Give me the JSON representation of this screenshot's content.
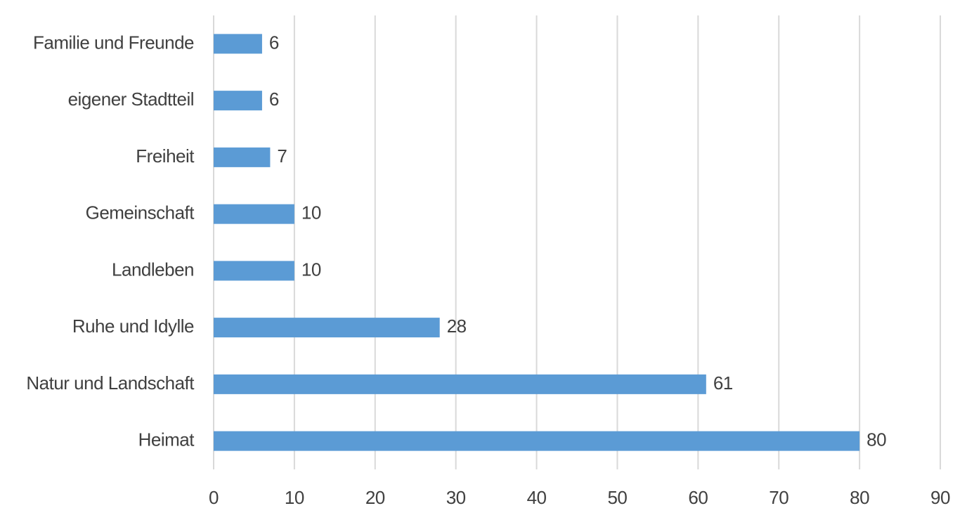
{
  "chart_data": {
    "type": "bar",
    "orientation": "horizontal",
    "categories": [
      "Familie und Freunde",
      "eigener Stadtteil",
      "Freiheit",
      "Gemeinschaft",
      "Landleben",
      "Ruhe und Idylle",
      "Natur und Landschaft",
      "Heimat"
    ],
    "values": [
      6,
      6,
      7,
      10,
      10,
      28,
      61,
      80
    ],
    "color": "#5b9bd5",
    "xlim": [
      0,
      90
    ],
    "xticks": [
      0,
      10,
      20,
      30,
      40,
      50,
      60,
      70,
      80,
      90
    ],
    "grid": true,
    "data_labels": true
  }
}
